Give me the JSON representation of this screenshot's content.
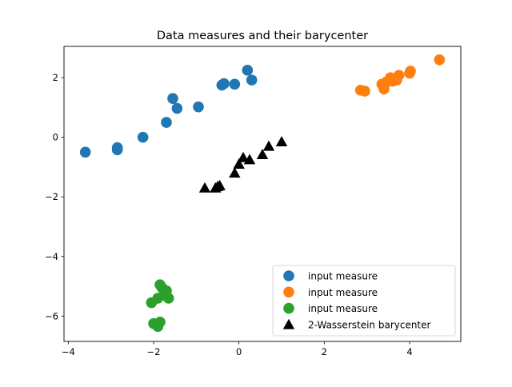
{
  "chart_data": {
    "type": "scatter",
    "title": "Data measures and their barycenter",
    "xlabel": "",
    "ylabel": "",
    "xlim": [
      -4.1,
      5.2
    ],
    "ylim": [
      -6.85,
      3.05
    ],
    "xticks": [
      -4,
      -2,
      0,
      2,
      4
    ],
    "yticks": [
      -6,
      -4,
      -2,
      0,
      2
    ],
    "xtick_labels": [
      "−4",
      "−2",
      "0",
      "2",
      "4"
    ],
    "ytick_labels": [
      "−6",
      "−4",
      "−2",
      "0",
      "2"
    ],
    "grid": false,
    "legend_position": "lower-right",
    "series": [
      {
        "name": "input measure",
        "color": "#1f77b4",
        "marker": "circle",
        "points": [
          [
            -3.6,
            -0.5
          ],
          [
            -2.85,
            -0.35
          ],
          [
            -2.85,
            -0.42
          ],
          [
            -2.25,
            0.0
          ],
          [
            -1.7,
            0.5
          ],
          [
            -1.55,
            1.3
          ],
          [
            -1.45,
            0.97
          ],
          [
            -0.95,
            1.02
          ],
          [
            -0.4,
            1.75
          ],
          [
            -0.35,
            1.8
          ],
          [
            -0.1,
            1.78
          ],
          [
            0.2,
            2.25
          ],
          [
            0.3,
            1.92
          ]
        ]
      },
      {
        "name": "input measure",
        "color": "#ff7f0e",
        "marker": "circle",
        "points": [
          [
            2.85,
            1.58
          ],
          [
            2.95,
            1.55
          ],
          [
            3.35,
            1.78
          ],
          [
            3.4,
            1.62
          ],
          [
            3.45,
            1.85
          ],
          [
            3.55,
            2.0
          ],
          [
            3.6,
            1.88
          ],
          [
            3.65,
            1.95
          ],
          [
            3.7,
            1.92
          ],
          [
            3.75,
            2.08
          ],
          [
            4.0,
            2.15
          ],
          [
            4.02,
            2.22
          ],
          [
            4.7,
            2.6
          ]
        ]
      },
      {
        "name": "input measure",
        "color": "#2ca02c",
        "marker": "circle",
        "points": [
          [
            -2.05,
            -5.55
          ],
          [
            -2.0,
            -6.25
          ],
          [
            -1.9,
            -5.4
          ],
          [
            -1.9,
            -6.35
          ],
          [
            -1.85,
            -4.95
          ],
          [
            -1.85,
            -6.2
          ],
          [
            -1.75,
            -5.3
          ],
          [
            -1.7,
            -5.15
          ],
          [
            -1.65,
            -5.4
          ],
          [
            -1.8,
            -5.05
          ]
        ]
      },
      {
        "name": "2-Wasserstein barycenter",
        "color": "#000000",
        "marker": "triangle",
        "points": [
          [
            -0.8,
            -1.7
          ],
          [
            -0.55,
            -1.7
          ],
          [
            -0.5,
            -1.65
          ],
          [
            -0.45,
            -1.62
          ],
          [
            -0.1,
            -1.2
          ],
          [
            0.0,
            -0.9
          ],
          [
            0.1,
            -0.68
          ],
          [
            0.25,
            -0.75
          ],
          [
            0.55,
            -0.58
          ],
          [
            0.7,
            -0.3
          ],
          [
            1.0,
            -0.15
          ]
        ]
      }
    ]
  }
}
